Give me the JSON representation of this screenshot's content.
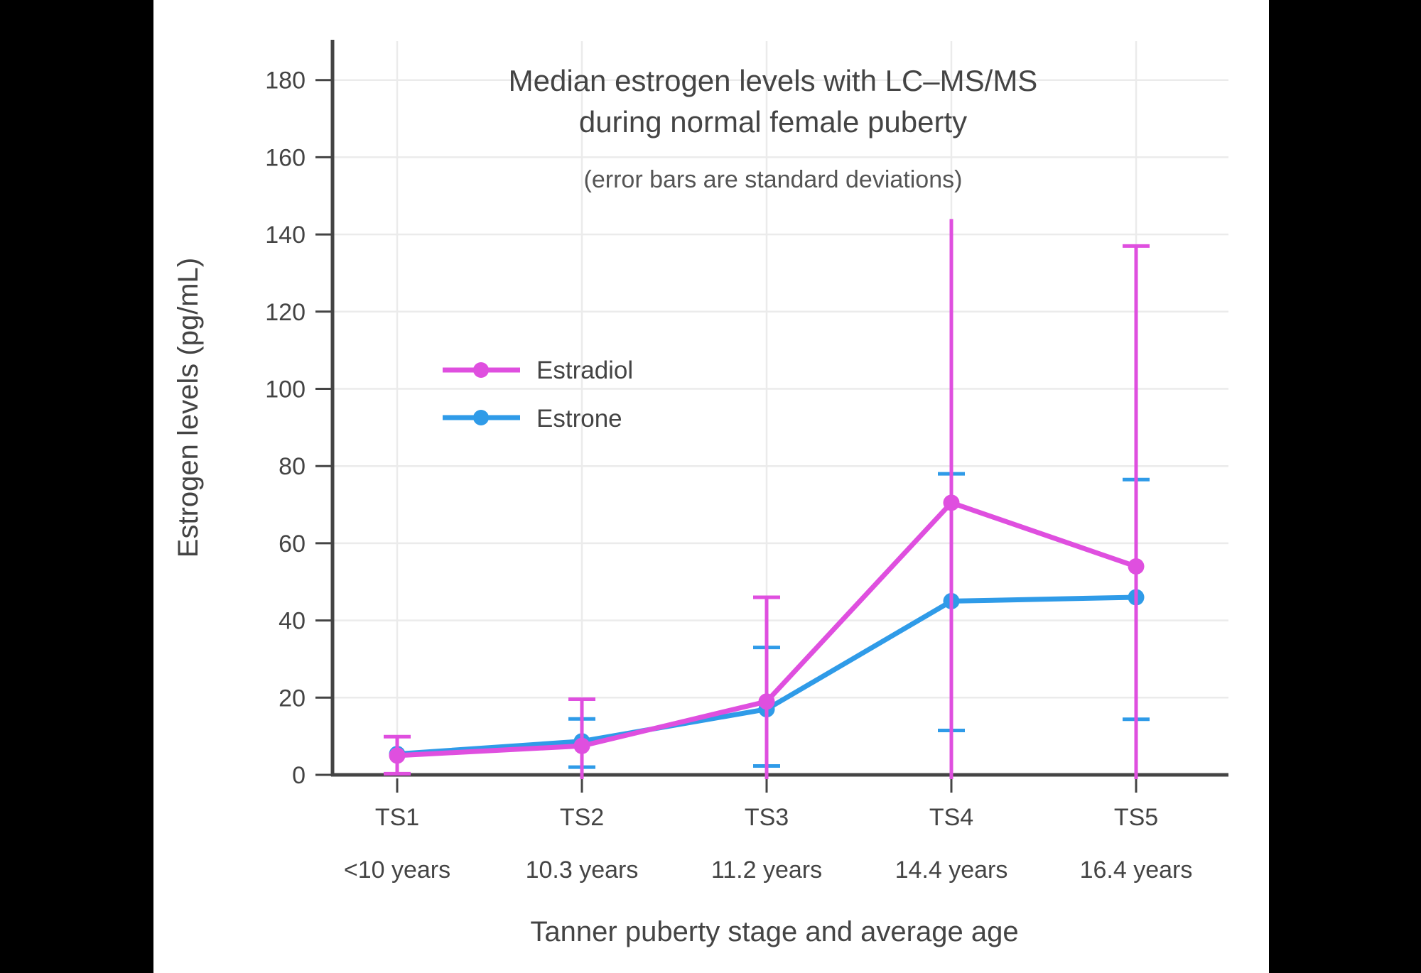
{
  "chart_data": {
    "type": "line",
    "title_lines": [
      "Median estrogen levels with LC–MS/MS",
      "during normal female puberty"
    ],
    "subtitle": "(error bars are standard deviations)",
    "xlabel": "Tanner puberty stage and average age",
    "ylabel": "Estrogen levels (pg/mL)",
    "categories": [
      "TS1",
      "TS2",
      "TS3",
      "TS4",
      "TS5"
    ],
    "category_sublabels": [
      "<10 years",
      "10.3 years",
      "11.2 years",
      "14.4 years",
      "16.4 years"
    ],
    "y_ticks": [
      0,
      20,
      40,
      60,
      80,
      100,
      120,
      140,
      160,
      180
    ],
    "ylim": [
      0,
      190
    ],
    "grid": true,
    "legend_position": "inside upper-left",
    "colors": {
      "estradiol": "#df4fdf",
      "estrone": "#2f9be8",
      "text": "#444444",
      "subtitle_text": "#555555",
      "gridline": "#ebebeb",
      "axis_line": "#444444",
      "plot_background": "#ffffff",
      "page_background": "#000000"
    },
    "series": [
      {
        "name": "Estradiol",
        "color": "#df4fdf",
        "values": [
          5,
          7.5,
          19,
          70.5,
          54
        ],
        "error_upper": [
          9.9,
          19.6,
          46,
          144,
          137
        ],
        "error_upper_caps": [
          true,
          true,
          true,
          false,
          true
        ],
        "error_lower": [
          0.3,
          null,
          null,
          null,
          null
        ]
      },
      {
        "name": "Estrone",
        "color": "#2f9be8",
        "values": [
          5.4,
          8.7,
          17,
          45,
          46
        ],
        "error_upper": [
          null,
          14.5,
          33,
          78,
          76.5
        ],
        "error_upper_caps": [
          false,
          true,
          true,
          true,
          true
        ],
        "error_lower": [
          null,
          2,
          2.3,
          11.5,
          14.4
        ]
      }
    ]
  }
}
